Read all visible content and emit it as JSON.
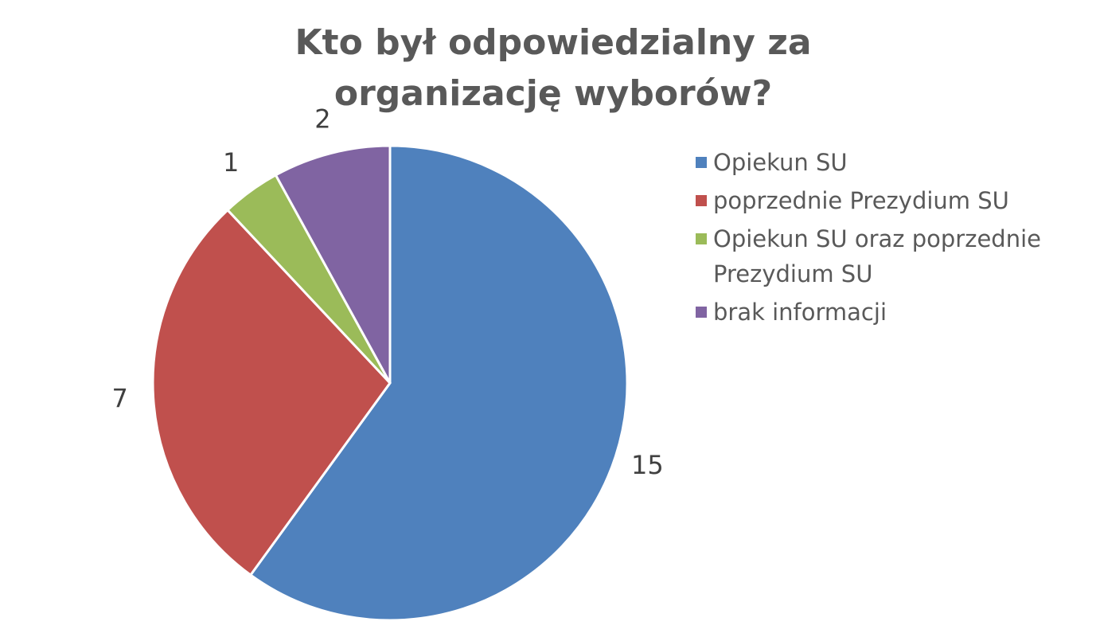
{
  "chart_data": {
    "type": "pie",
    "title": "Kto był odpowiedzialny za organizację wyborów?",
    "categories": [
      "Opiekun SU",
      "poprzednie Prezydium SU",
      "Opiekun SU oraz poprzednie Prezydium SU",
      "brak informacji"
    ],
    "values": [
      15,
      7,
      1,
      2
    ],
    "colors": [
      "#4f81bd",
      "#c0504d",
      "#9bbb59",
      "#8064a2"
    ],
    "legend": "right"
  }
}
